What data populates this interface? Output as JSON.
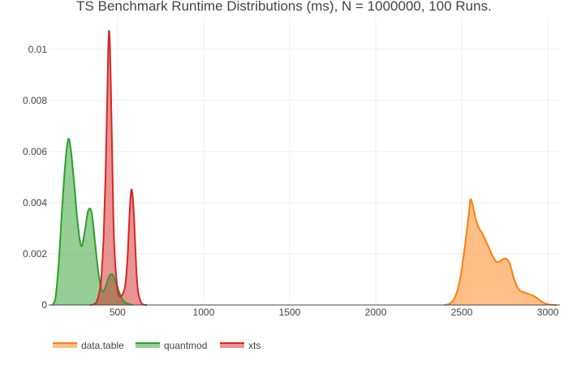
{
  "chart_data": {
    "type": "area",
    "title": "TS Benchmark Runtime Distributions (ms), N = 1000000, 100 Runs.",
    "xlabel": "",
    "ylabel": "",
    "xlim": [
      100,
      3070
    ],
    "ylim": [
      0,
      0.0112
    ],
    "x_ticks": [
      500,
      1000,
      1500,
      2000,
      2500,
      3000
    ],
    "x_tick_labels": [
      "500",
      "1000",
      "1500",
      "2000",
      "2500",
      "3000"
    ],
    "y_ticks": [
      0,
      0.002,
      0.004,
      0.006,
      0.008,
      0.01
    ],
    "y_tick_labels": [
      "0",
      "0.002",
      "0.004",
      "0.006",
      "0.008",
      "0.01"
    ],
    "grid": true,
    "legend_position": "bottom-left",
    "series": [
      {
        "name": "data.table",
        "color": "#ff7f0e",
        "fill": "rgba(255,127,14,0.5)",
        "x": [
          2400,
          2420,
          2440,
          2460,
          2480,
          2500,
          2520,
          2540,
          2550,
          2560,
          2580,
          2600,
          2620,
          2640,
          2660,
          2680,
          2700,
          2720,
          2740,
          2760,
          2780,
          2800,
          2820,
          2840,
          2860,
          2880,
          2900,
          2920,
          2940,
          2960,
          2980,
          3000,
          3020,
          3040,
          3050
        ],
        "y": [
          0,
          2e-05,
          0.0001,
          0.0003,
          0.0007,
          0.0014,
          0.0024,
          0.0035,
          0.0041,
          0.004,
          0.0034,
          0.003,
          0.0028,
          0.0025,
          0.0022,
          0.0019,
          0.0017,
          0.0017,
          0.0018,
          0.0018,
          0.0016,
          0.0011,
          0.00075,
          0.00055,
          0.0005,
          0.00045,
          0.0004,
          0.00035,
          0.00025,
          0.00015,
          7e-05,
          3e-05,
          1e-05,
          3e-06,
          0
        ]
      },
      {
        "name": "quantmod",
        "color": "#2ca02c",
        "fill": "rgba(44,160,44,0.5)",
        "x": [
          120,
          140,
          160,
          180,
          200,
          215,
          230,
          250,
          270,
          290,
          310,
          330,
          350,
          370,
          390,
          410,
          430,
          450,
          470,
          490,
          510,
          530,
          550,
          570,
          590
        ],
        "y": [
          0,
          0.0003,
          0.0018,
          0.004,
          0.0058,
          0.0065,
          0.006,
          0.0046,
          0.0031,
          0.0023,
          0.0029,
          0.0037,
          0.0036,
          0.0024,
          0.0012,
          0.00055,
          0.0007,
          0.0011,
          0.0012,
          0.0009,
          0.0005,
          0.0002,
          8e-05,
          3e-05,
          0
        ]
      },
      {
        "name": "xts",
        "color": "#d62728",
        "fill": "rgba(214,39,40,0.5)",
        "x": [
          340,
          360,
          380,
          400,
          410,
          420,
          430,
          440,
          445,
          450,
          455,
          460,
          470,
          480,
          500,
          520,
          540,
          550,
          560,
          570,
          580,
          590,
          600,
          610,
          620,
          640,
          660,
          670
        ],
        "y": [
          0,
          2e-05,
          0.00015,
          0.0007,
          0.0015,
          0.0028,
          0.005,
          0.008,
          0.0097,
          0.0107,
          0.0103,
          0.009,
          0.0055,
          0.0025,
          0.0006,
          0.00035,
          0.0006,
          0.0011,
          0.0021,
          0.0036,
          0.0045,
          0.0041,
          0.0028,
          0.0013,
          0.0005,
          6e-05,
          5e-06,
          0
        ]
      }
    ]
  }
}
